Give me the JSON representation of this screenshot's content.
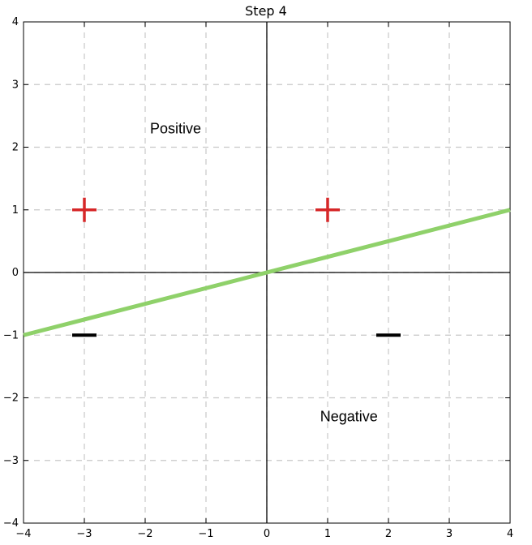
{
  "chart_data": {
    "type": "scatter",
    "title": "Step 4",
    "xlabel": "",
    "ylabel": "",
    "xlim": [
      -4,
      4
    ],
    "ylim": [
      -4,
      4
    ],
    "grid": true,
    "grid_style": "dashed",
    "x_ticks": [
      -4,
      -3,
      -2,
      -1,
      0,
      1,
      2,
      3,
      4
    ],
    "y_ticks": [
      -4,
      -3,
      -2,
      -1,
      0,
      1,
      2,
      3,
      4
    ],
    "x_tick_labels": [
      "−4",
      "−3",
      "−2",
      "−1",
      "0",
      "1",
      "2",
      "3",
      "4"
    ],
    "y_tick_labels": [
      "−4",
      "−3",
      "−2",
      "−1",
      "0",
      "1",
      "2",
      "3",
      "4"
    ],
    "points": [
      {
        "x": -3,
        "y": 1,
        "marker": "+",
        "class": "positive",
        "color": "#d62728"
      },
      {
        "x": 1,
        "y": 1,
        "marker": "+",
        "class": "positive",
        "color": "#d62728"
      },
      {
        "x": -3,
        "y": -1,
        "marker": "−",
        "class": "negative",
        "color": "#000000"
      },
      {
        "x": 2,
        "y": -1,
        "marker": "−",
        "class": "negative",
        "color": "#000000"
      }
    ],
    "decision_boundary": {
      "x": [
        -4,
        4
      ],
      "y": [
        -1,
        1
      ],
      "color": "#8fd16a"
    },
    "annotations": [
      {
        "text": "Positive",
        "x": -1.5,
        "y": 2.3
      },
      {
        "text": "Negative",
        "x": 1.35,
        "y": -2.3
      }
    ]
  }
}
